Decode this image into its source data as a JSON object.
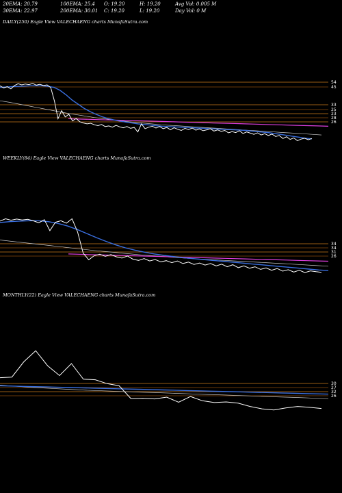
{
  "header": {
    "ema20": "20EMA: 20.79",
    "ema100": "100EMA: 25.4",
    "open": "O: 19.20",
    "high": "H: 19.20",
    "avgvol": "Avg Vol: 0.005 M",
    "ema30": "30EMA: 22.97",
    "ema200": "200EMA: 30.01",
    "close": "C: 19.20",
    "low": "L: 19.20",
    "dayvol": "Day Vol: 0  M"
  },
  "panels": [
    {
      "title": "DAILY(250) Eagle   View  VALECHAENG charts MunafaSutra.com",
      "levels": [
        "54",
        "45",
        "33",
        "25",
        "23",
        "28",
        "26"
      ]
    },
    {
      "title": "WEEKLY(84) Eagle   View  VALECHAENG charts MunafaSutra.com",
      "levels": [
        "34",
        "34",
        "31",
        "26"
      ]
    },
    {
      "title": "MONTHLY(22) Eagle   View  VALECHAENG charts MunafaSutra.com",
      "levels": [
        "30",
        "27",
        "32",
        "26"
      ]
    }
  ],
  "chart_data": [
    {
      "type": "line",
      "title": "DAILY(250) Eagle   View  VALECHAENG charts MunafaSutra.com",
      "price": [
        44.5,
        43.8,
        44.2,
        43.5,
        44.6,
        45.2,
        44.8,
        45.1,
        44.9,
        45.3,
        44.7,
        45.0,
        44.6,
        44.8,
        43.9,
        39.5,
        33.5,
        36.2,
        34.1,
        35.0,
        32.8,
        33.6,
        32.5,
        32.1,
        31.8,
        32.0,
        31.5,
        31.2,
        31.6,
        30.9,
        31.1,
        30.7,
        31.3,
        30.8,
        30.5,
        30.9,
        30.3,
        30.6,
        29.1,
        31.8,
        30.2,
        30.7,
        31.0,
        30.4,
        30.9,
        30.2,
        30.6,
        29.8,
        30.5,
        30.0,
        29.6,
        30.3,
        29.9,
        30.4,
        29.7,
        30.1,
        29.5,
        29.8,
        30.2,
        29.4,
        29.8,
        29.3,
        29.6,
        28.8,
        29.2,
        28.9,
        29.5,
        28.6,
        29.1,
        28.7,
        28.3,
        28.8,
        28.1,
        28.5,
        27.9,
        28.4,
        27.6,
        27.9,
        26.9,
        27.5,
        26.6,
        27.1,
        26.2,
        26.7,
        27.0,
        26.5,
        26.9
      ],
      "ema_fast": [
        44.0,
        44.1,
        44.2,
        44.3,
        44.4,
        44.5,
        44.5,
        44.5,
        44.3,
        44.0,
        43.0,
        41.5,
        39.8,
        38.4,
        37.0,
        35.9,
        35.0,
        34.2,
        33.6,
        33.1,
        32.7,
        32.4,
        32.1,
        31.8,
        31.6,
        31.4,
        31.2,
        31.0,
        30.9,
        30.8,
        30.7,
        30.6,
        30.5,
        30.4,
        30.3,
        30.2,
        30.1,
        30.0,
        29.9,
        29.8,
        29.7,
        29.6,
        29.4,
        29.2,
        29.0,
        28.8,
        28.5,
        28.2,
        27.9,
        27.6,
        27.3,
        27.0,
        26.8
      ],
      "ema_slow": [
        39.5,
        39.0,
        38.4,
        37.8,
        37.2,
        36.6,
        36.0,
        35.4,
        34.9,
        34.4,
        33.9,
        33.5,
        33.1,
        32.7,
        32.4,
        32.1,
        31.8,
        31.5,
        31.3,
        31.1,
        30.9,
        30.7,
        30.5,
        30.3,
        30.1,
        29.9,
        29.7,
        29.5,
        29.3,
        29.1,
        28.9,
        28.7,
        28.5,
        28.3,
        28.1
      ],
      "ema_magenta": [
        33.5,
        33.4,
        33.3,
        33.2,
        33.1,
        33.0,
        32.9,
        32.8,
        32.7,
        32.6,
        32.5,
        32.4,
        32.3,
        32.2,
        32.1,
        32.0,
        31.9,
        31.8,
        31.7,
        31.6,
        31.5,
        31.4,
        31.3,
        31.2,
        31.1,
        31.0
      ],
      "ylim": [
        24,
        64
      ],
      "levels": [
        54,
        45,
        33,
        25,
        23,
        28,
        26
      ]
    },
    {
      "type": "line",
      "title": "WEEKLY(84) Eagle   View  VALECHAENG charts MunafaSutra.com",
      "price": [
        44.5,
        45.3,
        44.8,
        45.2,
        44.9,
        45.1,
        44.6,
        43.9,
        45.0,
        41.2,
        44.1,
        44.6,
        43.8,
        45.3,
        40.8,
        33.5,
        31.2,
        32.6,
        33.1,
        32.4,
        33.0,
        32.2,
        31.8,
        32.5,
        31.4,
        31.0,
        31.6,
        30.8,
        31.3,
        30.5,
        30.9,
        30.2,
        30.8,
        29.9,
        30.4,
        29.6,
        30.1,
        29.4,
        29.9,
        29.1,
        29.7,
        28.8,
        29.5,
        28.5,
        29.1,
        28.3,
        28.8,
        27.9,
        28.4,
        27.6,
        28.2,
        27.3,
        27.8,
        27.0,
        27.6,
        26.8,
        27.4,
        27.1,
        26.9
      ],
      "ema_fast": [
        44.0,
        44.3,
        44.5,
        44.6,
        44.6,
        44.3,
        43.7,
        42.8,
        41.6,
        40.2,
        38.8,
        37.5,
        36.3,
        35.3,
        34.5,
        33.8,
        33.2,
        32.7,
        32.3,
        31.9,
        31.6,
        31.3,
        31.0,
        30.7,
        30.4,
        30.1,
        29.8,
        29.5,
        29.2,
        28.9,
        28.6,
        28.3,
        28.0,
        27.7,
        27.5
      ],
      "ema_slow": [
        38.0,
        37.4,
        36.8,
        36.2,
        35.6,
        35.0,
        34.4,
        33.9,
        33.4,
        32.9,
        32.5,
        32.1,
        31.7,
        31.4,
        31.1,
        30.8,
        30.5,
        30.2,
        29.9,
        29.6,
        29.3,
        29.0
      ],
      "ema_magenta": [
        33.2,
        33.1,
        33.0,
        32.9,
        32.8,
        32.7,
        32.6,
        32.5,
        32.4,
        32.3,
        32.2,
        32.1,
        32.0,
        31.9,
        31.8,
        31.7,
        31.6,
        31.5,
        31.4,
        31.3,
        31.2,
        31.1,
        31.0,
        30.9,
        30.8,
        30.7
      ],
      "ylim": [
        24,
        64
      ],
      "levels": [
        34,
        34,
        31,
        26
      ]
    },
    {
      "type": "line",
      "title": "MONTHLY(22) Eagle   View  VALECHAENG charts MunafaSutra.com",
      "price": [
        34.5,
        34.7,
        39.8,
        43.5,
        38.5,
        35.2,
        39.2,
        34.0,
        33.8,
        32.5,
        31.8,
        27.5,
        27.6,
        27.4,
        28.0,
        26.3,
        28.2,
        26.8,
        26.2,
        26.4,
        26.0,
        24.9,
        24.1,
        23.7,
        24.4,
        24.9,
        24.6,
        24.2
      ],
      "ema_fast": [
        31.8,
        31.7,
        31.6,
        31.5,
        31.4,
        31.3,
        31.2,
        31.1,
        31.0,
        30.9,
        30.8,
        30.7,
        30.6,
        30.5,
        30.4,
        30.3,
        30.2,
        30.1,
        30.0,
        29.9,
        29.8,
        29.7,
        29.6,
        29.5,
        29.4,
        29.3,
        29.2,
        29.1,
        29.0
      ],
      "ema_slow": [
        32.0,
        31.6,
        31.2,
        30.9,
        30.6,
        30.3,
        30.1,
        29.9,
        29.7,
        29.5,
        29.3,
        29.1,
        28.9,
        28.7,
        28.5,
        28.3,
        28.1,
        27.9,
        27.7,
        27.5
      ],
      "ema_magenta": [],
      "ylim": [
        20,
        60
      ],
      "levels": [
        30,
        27,
        32,
        26
      ]
    }
  ],
  "colors": {
    "background": "#000000",
    "price": "#ffffff",
    "ema_fast": "#3a6fe0",
    "ema_slow": "#cccccc",
    "ema_magenta": "#e040e0",
    "level": "#cc7a1a",
    "level_dark": "#8a4a0a"
  }
}
